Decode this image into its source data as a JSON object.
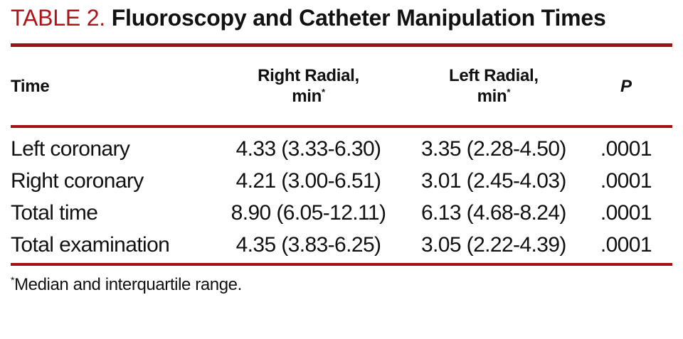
{
  "title": {
    "label": "TABLE 2.",
    "text": "Fluoroscopy and Catheter Manipulation Times"
  },
  "colors": {
    "accent_red": "#b11218",
    "rule_red": "#a30f15",
    "text_black": "#111111",
    "background": "#ffffff"
  },
  "table": {
    "columns": [
      {
        "label": "Time"
      },
      {
        "label_line1": "Right Radial,",
        "label_line2": "min",
        "superscript": "*"
      },
      {
        "label_line1": "Left Radial,",
        "label_line2": "min",
        "superscript": "*"
      },
      {
        "label": "P"
      }
    ],
    "rows": [
      {
        "time": "Left coronary",
        "right_radial": "4.33 (3.33-6.30)",
        "left_radial": "3.35 (2.28-4.50)",
        "p": ".0001"
      },
      {
        "time": "Right coronary",
        "right_radial": "4.21 (3.00-6.51)",
        "left_radial": "3.01 (2.45-4.03)",
        "p": ".0001"
      },
      {
        "time": "Total time",
        "right_radial": "8.90 (6.05-12.11)",
        "left_radial": "6.13 (4.68-8.24)",
        "p": ".0001"
      },
      {
        "time": "Total examination",
        "right_radial": "4.35 (3.83-6.25)",
        "left_radial": "3.05 (2.22-4.39)",
        "p": ".0001"
      }
    ]
  },
  "footnote": {
    "marker": "*",
    "text": "Median and interquartile range."
  }
}
